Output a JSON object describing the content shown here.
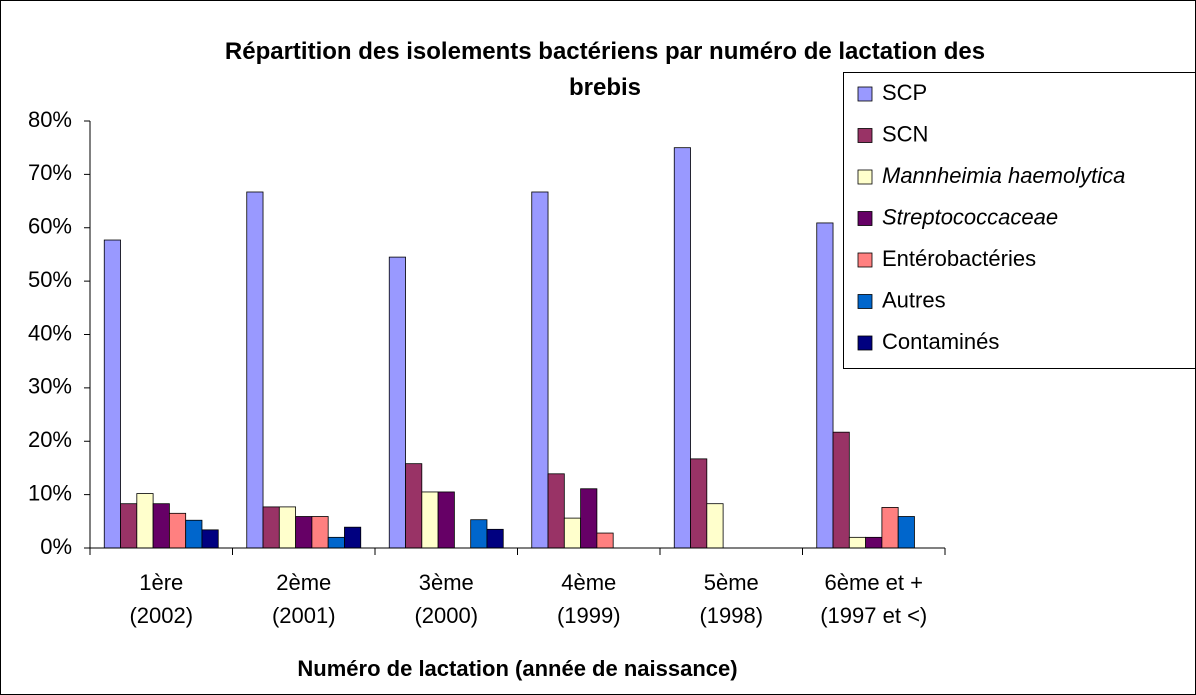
{
  "chart_data": {
    "type": "bar",
    "title": "Répartition des isolements bactériens par numéro de lactation des\nbrebis",
    "x_label": "Numéro de lactation (année de naissance)",
    "categories": [
      "1ère\n(2002)",
      "2ème\n(2001)",
      "3ème\n(2000)",
      "4ème\n(1999)",
      "5ème\n(1998)",
      "6ème et +\n(1997 et <)"
    ],
    "series": [
      {
        "name": "SCP",
        "color": "#9999ff",
        "values": [
          57.7,
          66.7,
          54.5,
          66.7,
          75.0,
          60.9
        ]
      },
      {
        "name": "SCN",
        "color": "#993366",
        "values": [
          8.3,
          7.7,
          15.8,
          13.9,
          16.7,
          21.7
        ]
      },
      {
        "name": "Mannheimia haemolytica",
        "color": "#ffffcc",
        "italic": true,
        "values": [
          10.2,
          7.7,
          10.5,
          5.6,
          8.3,
          2.0
        ]
      },
      {
        "name": "Streptococcaceae",
        "color": "#660066",
        "italic": true,
        "values": [
          8.3,
          5.9,
          10.5,
          11.1,
          0,
          2.0
        ]
      },
      {
        "name": "Entérobactéries",
        "color": "#ff8080",
        "values": [
          6.5,
          5.9,
          0,
          2.8,
          0,
          7.6
        ]
      },
      {
        "name": "Autres",
        "color": "#0066cc",
        "values": [
          5.2,
          2.0,
          5.3,
          0,
          0,
          5.9
        ]
      },
      {
        "name": "Contaminés",
        "color": "#000080",
        "values": [
          3.4,
          3.9,
          3.5,
          0,
          0,
          0
        ]
      }
    ],
    "ylim": [
      0,
      80
    ],
    "yticks": [
      {
        "value": 0,
        "label": "0%"
      },
      {
        "value": 10,
        "label": "10%"
      },
      {
        "value": 20,
        "label": "20%"
      },
      {
        "value": 30,
        "label": "30%"
      },
      {
        "value": 40,
        "label": "40%"
      },
      {
        "value": 50,
        "label": "50%"
      },
      {
        "value": 60,
        "label": "60%"
      },
      {
        "value": 70,
        "label": "70%"
      },
      {
        "value": 80,
        "label": "80%"
      }
    ],
    "grid": false,
    "legend": "right"
  }
}
